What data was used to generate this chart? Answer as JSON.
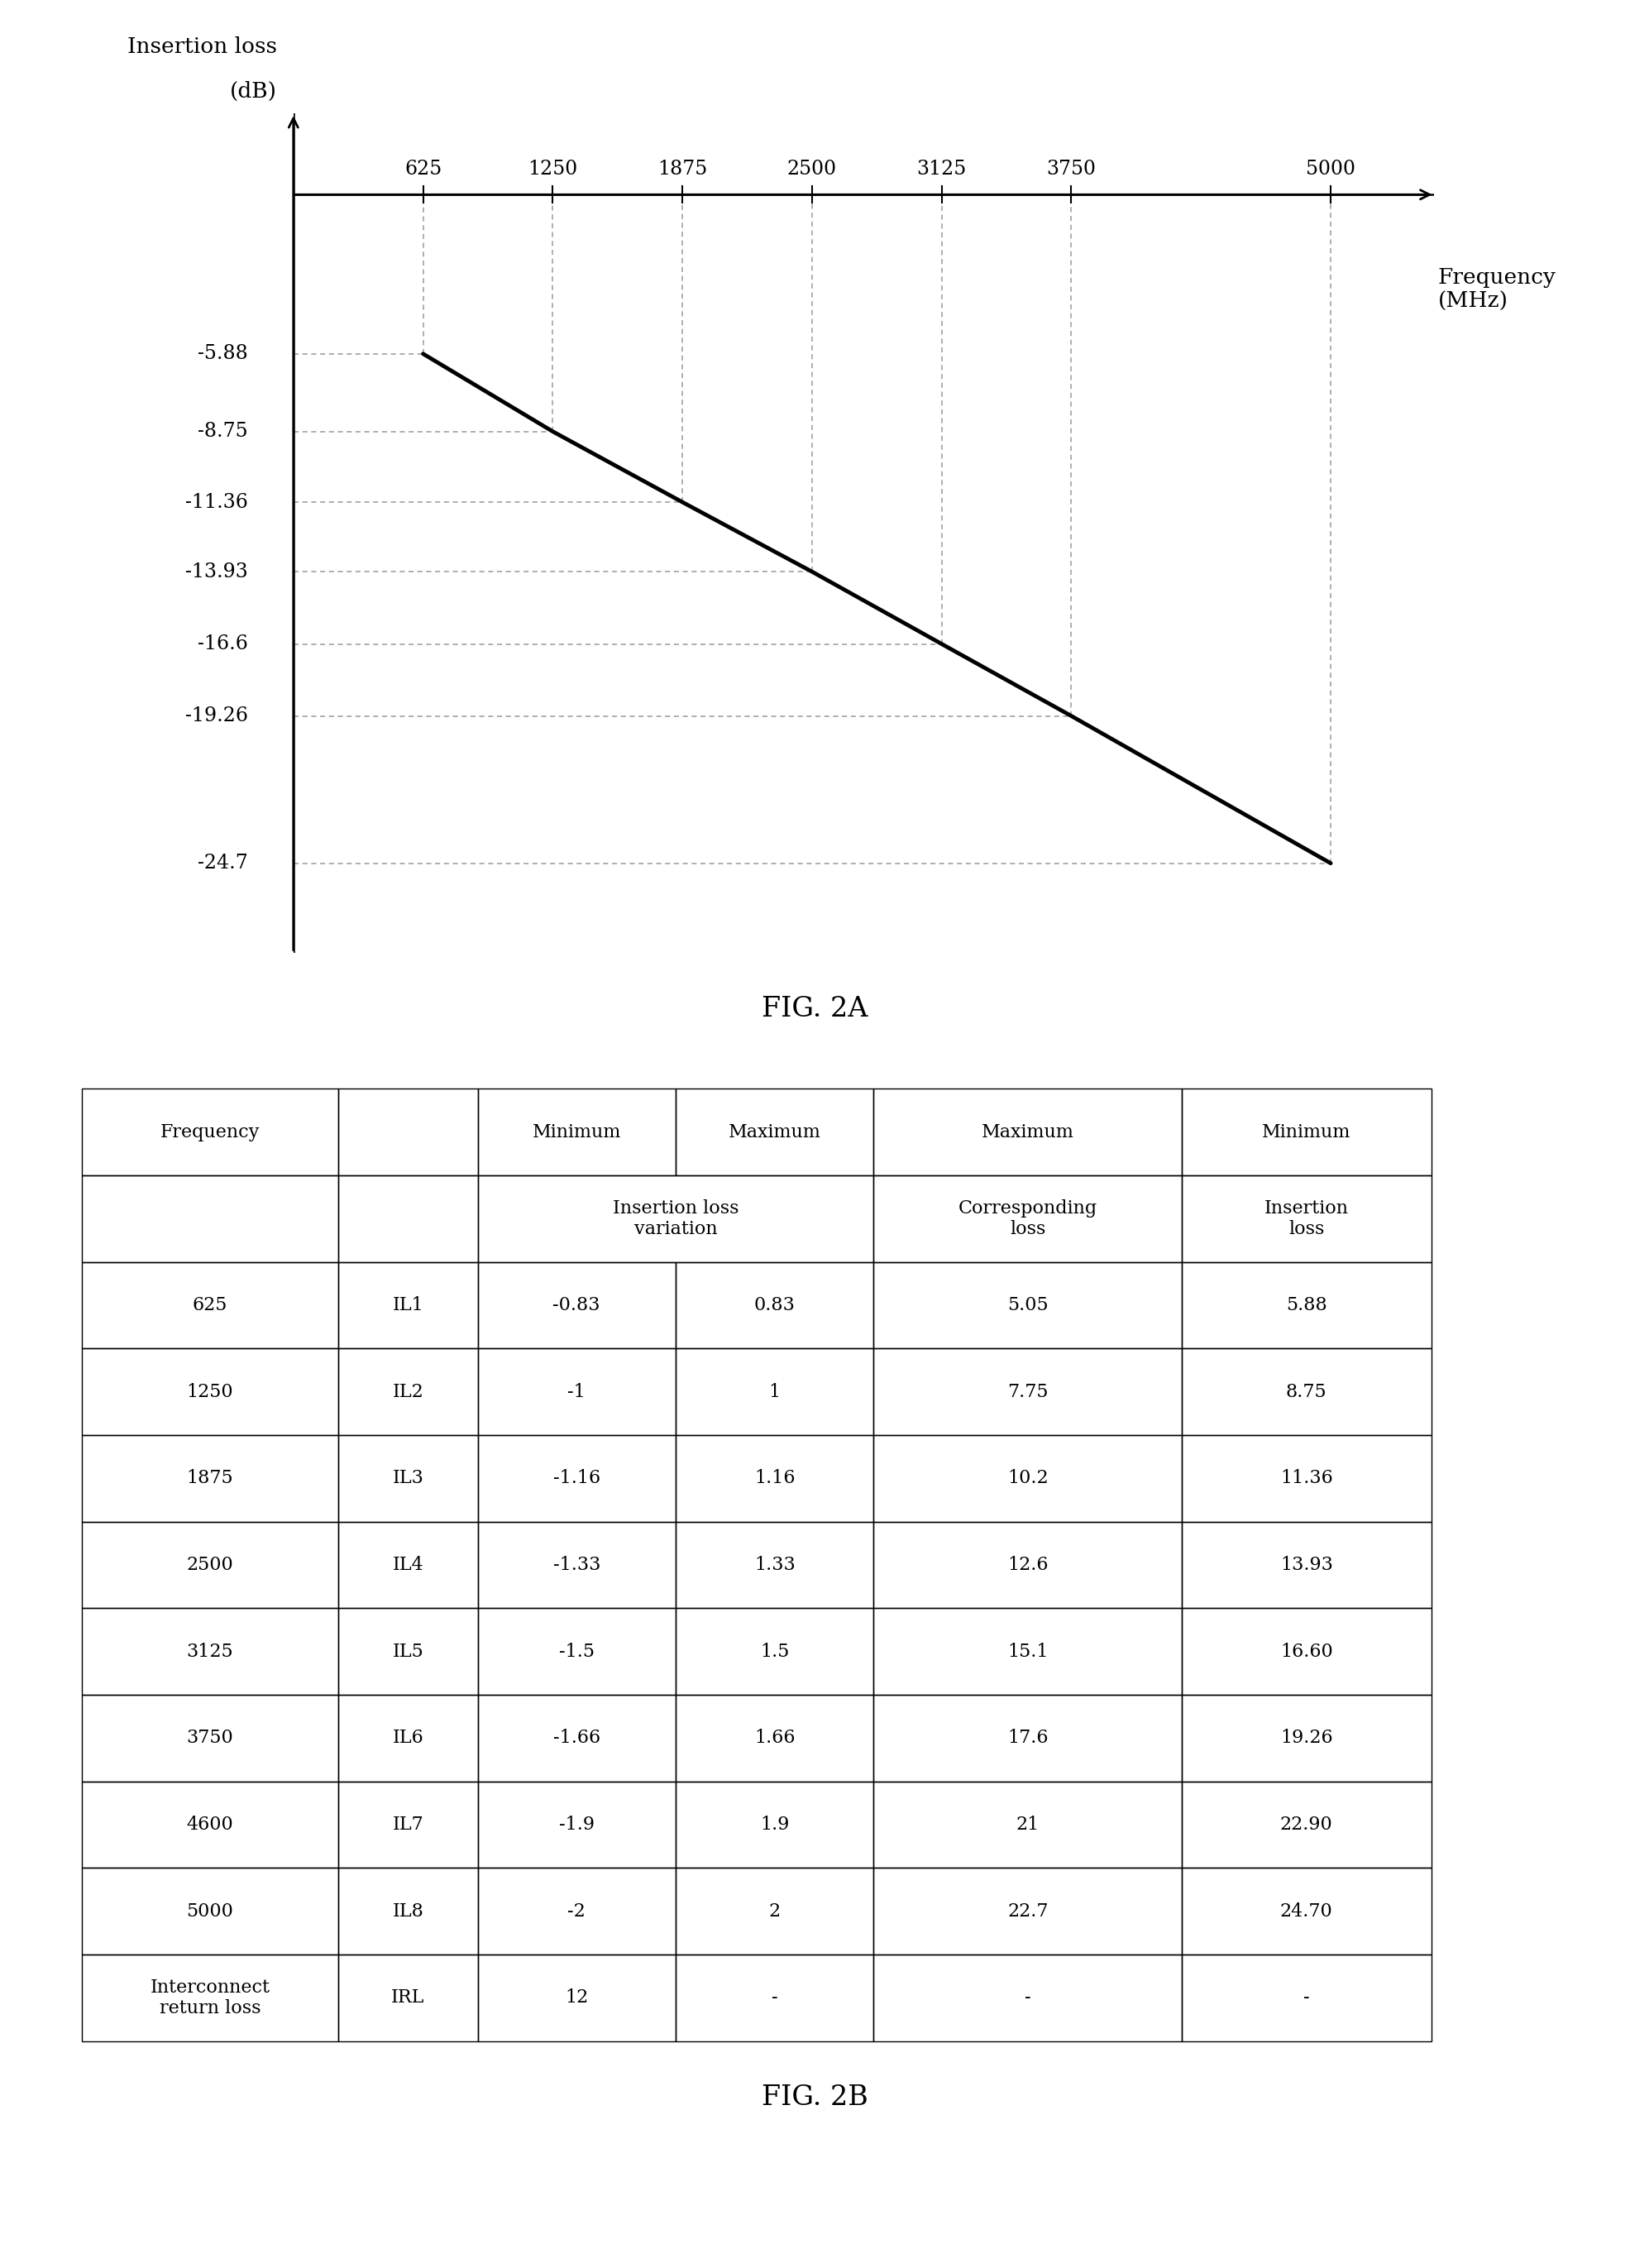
{
  "chart": {
    "x_ticks": [
      625,
      1250,
      1875,
      2500,
      3125,
      3750,
      5000
    ],
    "y_ticks": [
      -5.88,
      -8.75,
      -11.36,
      -13.93,
      -16.6,
      -19.26,
      -24.7
    ],
    "line_x": [
      625,
      1250,
      1875,
      2500,
      3125,
      3750,
      5000
    ],
    "line_y": [
      -5.88,
      -8.75,
      -11.36,
      -13.93,
      -16.6,
      -19.26,
      -24.7
    ],
    "x_label_line1": "Frequency",
    "x_label_line2": "(MHz)",
    "y_label_line1": "Insertion loss",
    "y_label_line2": "(dB)",
    "fig2a_label": "FIG. 2A",
    "x_min": 0,
    "x_max": 5500,
    "y_min": -28,
    "y_max": 3.0
  },
  "table": {
    "header1": [
      "Frequency",
      "",
      "Minimum",
      "Maximum",
      "Maximum",
      "Minimum"
    ],
    "col_widths": [
      0.175,
      0.095,
      0.135,
      0.135,
      0.21,
      0.17
    ],
    "rows": [
      [
        "625",
        "IL1",
        "-0.83",
        "0.83",
        "5.05",
        "5.88"
      ],
      [
        "1250",
        "IL2",
        "-1",
        "1",
        "7.75",
        "8.75"
      ],
      [
        "1875",
        "IL3",
        "-1.16",
        "1.16",
        "10.2",
        "11.36"
      ],
      [
        "2500",
        "IL4",
        "-1.33",
        "1.33",
        "12.6",
        "13.93"
      ],
      [
        "3125",
        "IL5",
        "-1.5",
        "1.5",
        "15.1",
        "16.60"
      ],
      [
        "3750",
        "IL6",
        "-1.66",
        "1.66",
        "17.6",
        "19.26"
      ],
      [
        "4600",
        "IL7",
        "-1.9",
        "1.9",
        "21",
        "22.90"
      ],
      [
        "5000",
        "IL8",
        "-2",
        "2",
        "22.7",
        "24.70"
      ],
      [
        "Interconnect\nreturn loss",
        "IRL",
        "12",
        "-",
        "-",
        "-"
      ]
    ],
    "fig2b_label": "FIG. 2B"
  },
  "bg_color": "#ffffff",
  "line_color": "#000000",
  "dashed_color": "#999999",
  "font_size_axis_label": 19,
  "font_size_tick": 17,
  "font_size_table": 16,
  "font_size_fig": 24
}
